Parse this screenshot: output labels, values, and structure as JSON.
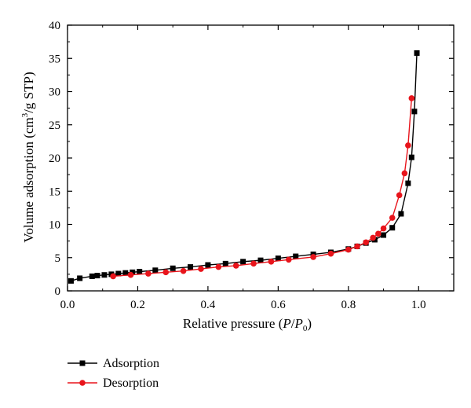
{
  "chart_data": {
    "type": "line",
    "xlabel_parts": {
      "text": "Relative pressure (",
      "var1": "P",
      "slash": "/",
      "var2": "P",
      "sub": "0",
      "close": ")"
    },
    "ylabel_parts": {
      "text": "Volume adsorption (cm",
      "sup": "3",
      "rest": "/g STP)"
    },
    "xlim": [
      0,
      1.1
    ],
    "ylim": [
      0,
      40
    ],
    "xticks": [
      0.0,
      0.2,
      0.4,
      0.6,
      0.8,
      1.0
    ],
    "xtick_labels": [
      "0.0",
      "0.2",
      "0.4",
      "0.6",
      "0.8",
      "1.0"
    ],
    "yticks": [
      0,
      5,
      10,
      15,
      20,
      25,
      30,
      35,
      40
    ],
    "ytick_labels": [
      "0",
      "5",
      "10",
      "15",
      "20",
      "25",
      "30",
      "35",
      "40"
    ],
    "grid": false,
    "legend_position": "bottom-left below plot",
    "series": [
      {
        "name": "Adsorption",
        "color": "#000000",
        "marker": "square",
        "x": [
          0.01,
          0.035,
          0.07,
          0.085,
          0.105,
          0.125,
          0.145,
          0.165,
          0.185,
          0.205,
          0.25,
          0.3,
          0.35,
          0.4,
          0.45,
          0.5,
          0.55,
          0.6,
          0.65,
          0.7,
          0.75,
          0.8,
          0.825,
          0.85,
          0.875,
          0.9,
          0.925,
          0.95,
          0.97,
          0.98,
          0.988,
          0.995
        ],
        "y": [
          1.5,
          1.9,
          2.2,
          2.3,
          2.4,
          2.5,
          2.6,
          2.7,
          2.8,
          2.9,
          3.1,
          3.4,
          3.6,
          3.9,
          4.1,
          4.4,
          4.6,
          4.9,
          5.2,
          5.5,
          5.8,
          6.3,
          6.7,
          7.2,
          7.7,
          8.4,
          9.5,
          11.6,
          16.2,
          20.1,
          27.0,
          35.8
        ]
      },
      {
        "name": "Desorption",
        "color": "#e8141b",
        "marker": "circle",
        "x": [
          0.13,
          0.18,
          0.23,
          0.28,
          0.33,
          0.38,
          0.43,
          0.48,
          0.53,
          0.58,
          0.63,
          0.7,
          0.75,
          0.8,
          0.825,
          0.85,
          0.87,
          0.885,
          0.9,
          0.925,
          0.945,
          0.96,
          0.97,
          0.98
        ],
        "y": [
          2.2,
          2.4,
          2.6,
          2.8,
          3.0,
          3.3,
          3.6,
          3.8,
          4.1,
          4.4,
          4.7,
          5.1,
          5.6,
          6.2,
          6.7,
          7.3,
          8.0,
          8.6,
          9.4,
          11.0,
          14.4,
          17.7,
          21.9,
          29.0
        ]
      }
    ]
  }
}
